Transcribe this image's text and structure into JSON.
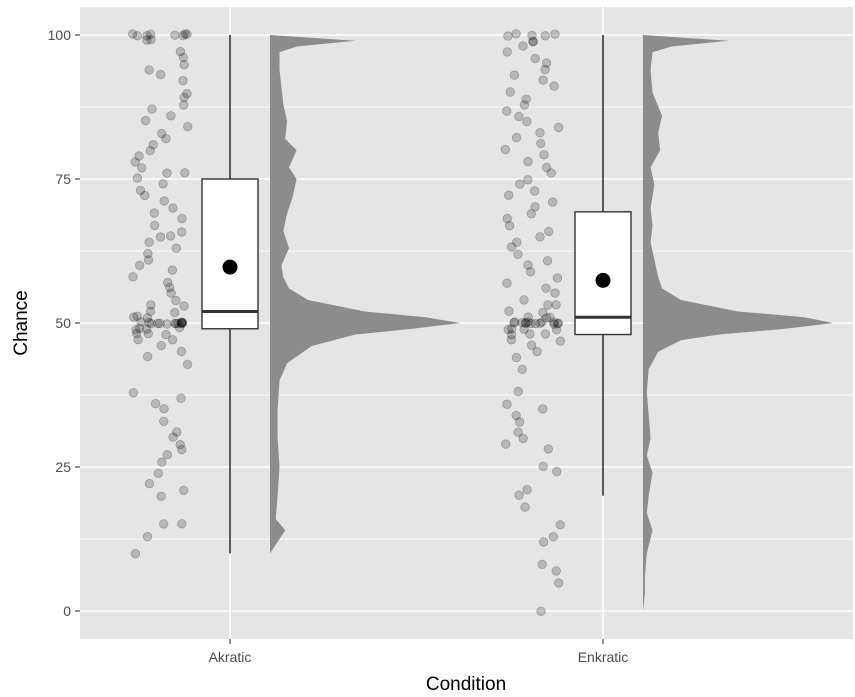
{
  "chart_data": {
    "type": "raincloud",
    "xlabel": "Condition",
    "ylabel": "Chance",
    "categories": [
      "Akratic",
      "Enkratic"
    ],
    "ylim": [
      -4.5,
      105
    ],
    "y_ticks": [
      0,
      25,
      50,
      75,
      100
    ],
    "grid": true,
    "legend": "none",
    "colors": {
      "panel": "#e5e5e5",
      "grid": "#ffffff",
      "points": "#000000",
      "density": "#8c8c8c",
      "box_fill": "#ffffff",
      "box_line": "#333333",
      "mean": "#000000"
    },
    "boxplots": [
      {
        "category": "Akratic",
        "whisker_low": 10,
        "q1": 49,
        "median": 52,
        "q3": 75,
        "whisker_high": 100,
        "mean": 59.7
      },
      {
        "category": "Enkratic",
        "whisker_low": 20,
        "q1": 48,
        "median": 51,
        "q3": 69.3,
        "whisker_high": 100,
        "mean": 57.4
      }
    ],
    "density": [
      {
        "category": "Akratic",
        "y": [
          10,
          12,
          14,
          16,
          20,
          25,
          30,
          35,
          40,
          43,
          46,
          48,
          49,
          50,
          51,
          52,
          54,
          56,
          58,
          60,
          63,
          66,
          69,
          72,
          75,
          77,
          80,
          82,
          85,
          88,
          91,
          94,
          97,
          98,
          99,
          100
        ],
        "height": [
          0.0,
          0.04,
          0.08,
          0.03,
          0.04,
          0.05,
          0.04,
          0.04,
          0.05,
          0.09,
          0.22,
          0.45,
          0.75,
          1.0,
          0.82,
          0.5,
          0.2,
          0.1,
          0.07,
          0.06,
          0.1,
          0.07,
          0.09,
          0.12,
          0.14,
          0.1,
          0.14,
          0.08,
          0.09,
          0.07,
          0.06,
          0.05,
          0.05,
          0.14,
          0.45,
          0.0
        ]
      },
      {
        "category": "Enkratic",
        "y": [
          0,
          3,
          6,
          10,
          14,
          17,
          20,
          24,
          27,
          30,
          34,
          38,
          42,
          45,
          47,
          48,
          49,
          50,
          51,
          52,
          54,
          56,
          58,
          61,
          64,
          67,
          70,
          74,
          77,
          80,
          83,
          86,
          90,
          94,
          97,
          98,
          99,
          100
        ],
        "height": [
          0.0,
          0.01,
          0.01,
          0.02,
          0.05,
          0.02,
          0.03,
          0.05,
          0.02,
          0.04,
          0.03,
          0.02,
          0.03,
          0.08,
          0.2,
          0.4,
          0.75,
          1.0,
          0.85,
          0.5,
          0.2,
          0.1,
          0.08,
          0.06,
          0.04,
          0.05,
          0.04,
          0.06,
          0.04,
          0.09,
          0.08,
          0.1,
          0.05,
          0.04,
          0.05,
          0.15,
          0.45,
          0.0
        ]
      }
    ],
    "points": [
      {
        "category": "Akratic",
        "y": [
          100,
          100,
          100,
          100,
          100,
          100,
          100,
          100,
          99,
          99,
          97,
          96,
          95,
          94,
          93,
          92,
          90,
          89,
          88,
          87,
          86,
          85,
          84,
          83,
          82,
          81,
          80,
          79,
          78,
          77,
          76,
          76,
          75,
          74,
          73,
          72,
          71,
          70,
          69,
          68,
          67,
          66,
          65,
          65,
          64,
          63,
          62,
          61,
          60,
          59,
          58,
          57,
          56,
          55,
          54,
          53,
          53,
          52,
          52,
          51,
          51,
          51,
          50,
          50,
          50,
          50,
          50,
          50,
          50,
          50,
          50,
          50,
          50,
          50,
          50,
          50,
          49,
          49,
          49,
          49,
          48,
          48,
          48,
          47,
          47,
          46,
          45,
          44,
          43,
          38,
          37,
          36,
          35,
          33,
          31,
          30,
          29,
          28,
          27,
          26,
          24,
          22,
          21,
          20,
          15,
          15,
          13,
          10
        ]
      },
      {
        "category": "Enkratic",
        "y": [
          100,
          100,
          100,
          100,
          100,
          99,
          99,
          98,
          97,
          96,
          95,
          94,
          93,
          92,
          91,
          90,
          89,
          88,
          87,
          86,
          85,
          84,
          83,
          82,
          81,
          80,
          79,
          78,
          77,
          76,
          75,
          74,
          73,
          72,
          71,
          70,
          69,
          68,
          67,
          66,
          65,
          64,
          63,
          62,
          61,
          60,
          59,
          58,
          57,
          56,
          55,
          54,
          53,
          53,
          52,
          52,
          51,
          51,
          51,
          50,
          50,
          50,
          50,
          50,
          50,
          50,
          50,
          50,
          50,
          50,
          50,
          50,
          50,
          49,
          49,
          49,
          49,
          48,
          48,
          48,
          47,
          47,
          46,
          45,
          44,
          42,
          38,
          36,
          35,
          34,
          33,
          31,
          30,
          29,
          28,
          25,
          24,
          21,
          20,
          18,
          15,
          13,
          12,
          8,
          7,
          5,
          0
        ]
      }
    ]
  }
}
